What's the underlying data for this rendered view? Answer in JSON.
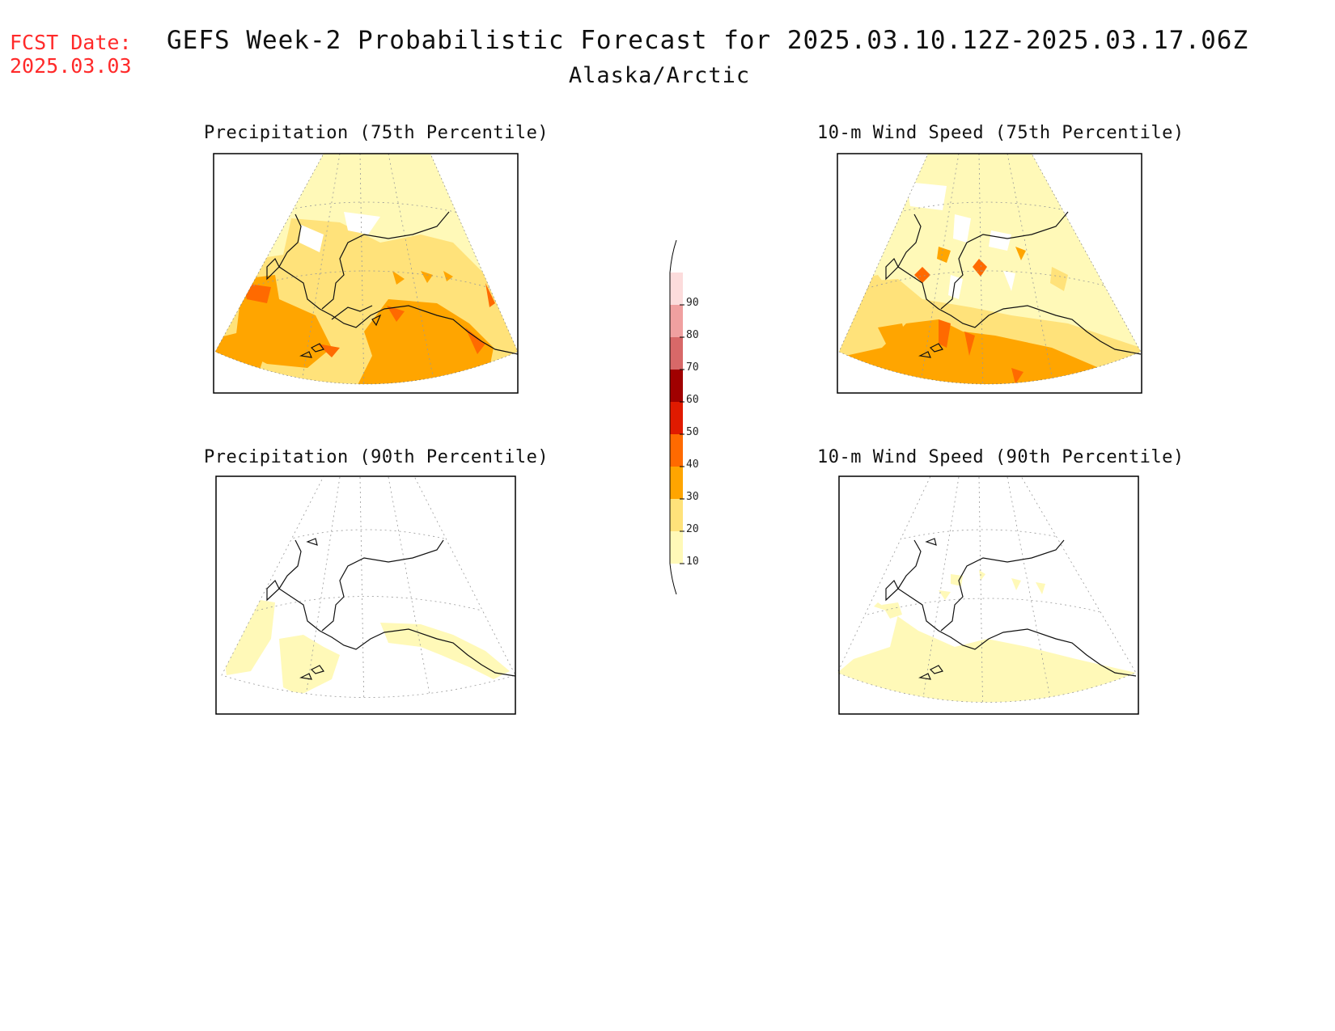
{
  "header": {
    "fcst_label": "FCST Date:",
    "fcst_date": "2025.03.03",
    "title": "GEFS Week-2 Probabilistic Forecast for 2025.03.10.12Z-2025.03.17.06Z",
    "subtitle": "Alaska/Arctic"
  },
  "panels": [
    {
      "id": "precip75",
      "title": "Precipitation (75th Percentile)"
    },
    {
      "id": "wind75",
      "title": "10-m Wind Speed (75th Percentile)"
    },
    {
      "id": "precip90",
      "title": "Precipitation (90th Percentile)"
    },
    {
      "id": "wind90",
      "title": "10-m Wind Speed (90th Percentile)"
    }
  ],
  "colorbar": {
    "ticks": [
      "10",
      "20",
      "30",
      "40",
      "50",
      "60",
      "70",
      "80",
      "90"
    ],
    "colors": [
      "#fff9b8",
      "#ffe27a",
      "#ffa500",
      "#ff6a00",
      "#e01a00",
      "#a00000",
      "#d86868",
      "#f0a0a0",
      "#fcdcdc"
    ]
  }
}
